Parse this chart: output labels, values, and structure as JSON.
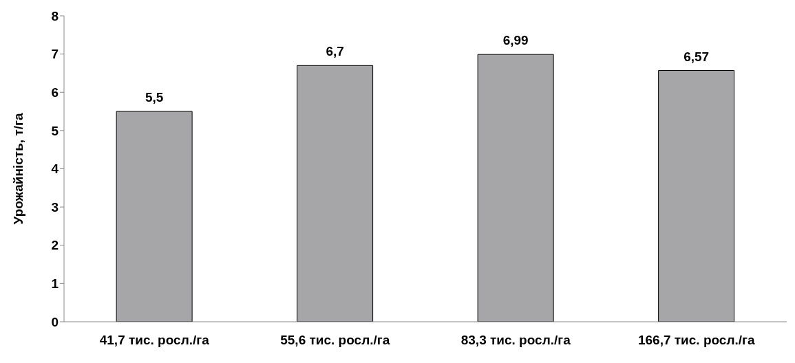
{
  "chart_data": {
    "type": "bar",
    "ylabel": "Урожайність, т/га",
    "categories": [
      "41,7 тис. росл./га",
      "55,6 тис. росл./га",
      "83,3 тис. росл./га",
      "166,7 тис. росл./га"
    ],
    "values": [
      5.5,
      6.7,
      6.99,
      6.57
    ],
    "value_labels": [
      "5,5",
      "6,7",
      "6,99",
      "6,57"
    ],
    "color": "#a6a6a9",
    "ylim": [
      0,
      8
    ],
    "yticks": [
      0,
      1,
      2,
      3,
      4,
      5,
      6,
      7,
      8
    ],
    "grid": false
  }
}
